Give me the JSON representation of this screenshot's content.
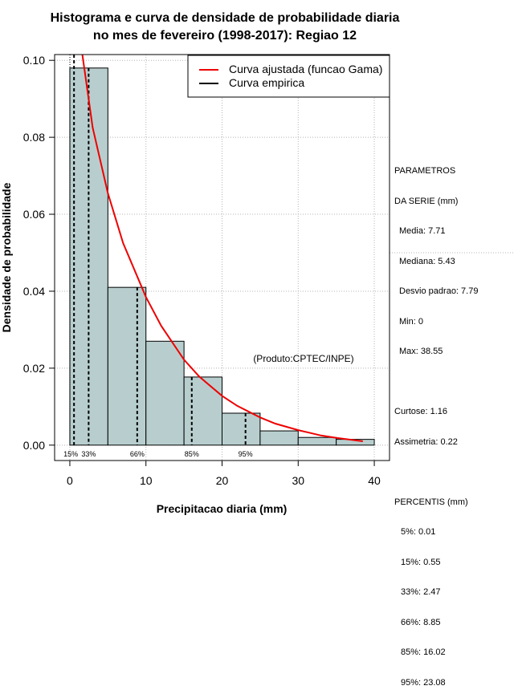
{
  "chart_data": {
    "type": "histogram",
    "title_line1": "Histograma e curva de densidade de probabilidade diaria",
    "title_line2": "no mes de fevereiro (1998-2017): Regiao 12",
    "xlabel": "Precipitacao diaria (mm)",
    "ylabel": "Densidade de probabilidade",
    "xlim": [
      -2,
      42
    ],
    "ylim": [
      -0.004,
      0.1015
    ],
    "x_ticks": [
      0,
      10,
      20,
      30,
      40
    ],
    "y_ticks": [
      0.0,
      0.02,
      0.04,
      0.06,
      0.08,
      0.1
    ],
    "y_tick_labels": [
      "0.00",
      "0.02",
      "0.04",
      "0.06",
      "0.08",
      "0.10"
    ],
    "grid": true,
    "bins": [
      {
        "x0": 0,
        "x1": 5,
        "density": 0.098
      },
      {
        "x0": 5,
        "x1": 10,
        "density": 0.041
      },
      {
        "x0": 10,
        "x1": 15,
        "density": 0.027
      },
      {
        "x0": 15,
        "x1": 20,
        "density": 0.0177
      },
      {
        "x0": 20,
        "x1": 25,
        "density": 0.0083
      },
      {
        "x0": 25,
        "x1": 30,
        "density": 0.0037
      },
      {
        "x0": 30,
        "x1": 35,
        "density": 0.002
      },
      {
        "x0": 35,
        "x1": 40,
        "density": 0.0015
      }
    ],
    "fitted_curve": {
      "name": "Curva ajustada (funcao Gama)",
      "color": "#ee0000",
      "points": [
        [
          1.5,
          0.1035
        ],
        [
          3,
          0.0825
        ],
        [
          5,
          0.0655
        ],
        [
          7,
          0.0525
        ],
        [
          10,
          0.0385
        ],
        [
          12,
          0.031
        ],
        [
          15,
          0.0222
        ],
        [
          17,
          0.0178
        ],
        [
          20,
          0.0128
        ],
        [
          22,
          0.0102
        ],
        [
          25,
          0.0072
        ],
        [
          27,
          0.0056
        ],
        [
          30,
          0.0039
        ],
        [
          33,
          0.0025
        ],
        [
          35,
          0.0019
        ],
        [
          38.5,
          0.001
        ]
      ]
    },
    "empirical_curve": {
      "name": "Curva empirica",
      "color": "#000000"
    },
    "percentile_lines": [
      {
        "x": 0.55,
        "label": "15%"
      },
      {
        "x": 2.47,
        "label": "33%"
      },
      {
        "x": 8.85,
        "label": "66%"
      },
      {
        "x": 16.02,
        "label": "85%"
      },
      {
        "x": 23.08,
        "label": "95%"
      }
    ],
    "dotted_vertical_lines": [
      0.01
    ],
    "annotation": "(Produto:CPTEC/INPE)",
    "bar_color": "#b8cece",
    "legend_position": "top-right"
  },
  "side_panel": {
    "heading1": "PARAMETROS",
    "heading2": "DA SERIE (mm)",
    "media": "Media: 7.71",
    "mediana": "Mediana: 5.43",
    "desvio": "Desvio padrao: 7.79",
    "min": "Min: 0",
    "max": "Max: 38.55",
    "curtose": "Curtose: 1.16",
    "assimetria": "Assimetria: 0.22",
    "percentis_heading": "PERCENTIS (mm)",
    "p5": "5%: 0.01",
    "p15": "15%: 0.55",
    "p33": "33%: 2.47",
    "p66": "66%: 8.85",
    "p85": "85%: 16.02",
    "p95": "95%: 23.08"
  }
}
